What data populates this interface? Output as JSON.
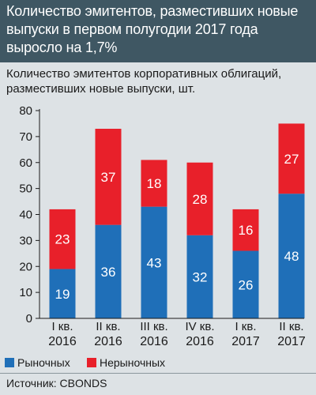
{
  "header": {
    "title": "Количество эмитентов, разместивших новые выпуски в первом полугодии 2017 года выросло на 1,7%"
  },
  "chart_data": {
    "type": "bar",
    "stacked": true,
    "title": "Количество эмитентов корпоративных облигаций, разместивших новые выпуски, шт.",
    "categories": [
      [
        "I кв.",
        "2016"
      ],
      [
        "II кв.",
        "2016"
      ],
      [
        "III кв.",
        "2016"
      ],
      [
        "IV кв.",
        "2016"
      ],
      [
        "I кв.",
        "2017"
      ],
      [
        "II кв.",
        "2017"
      ]
    ],
    "series": [
      {
        "name": "Рыночных",
        "color": "#1f6fb8",
        "values": [
          19,
          36,
          43,
          32,
          26,
          48
        ]
      },
      {
        "name": "Нерыночных",
        "color": "#e8202a",
        "values": [
          23,
          37,
          18,
          28,
          16,
          27
        ]
      }
    ],
    "ylim": [
      0,
      80
    ],
    "yticks": [
      0,
      10,
      20,
      30,
      40,
      50,
      60,
      70,
      80
    ],
    "grid": false,
    "legend_position": "bottom-left"
  },
  "source": "Источник: CBONDS"
}
